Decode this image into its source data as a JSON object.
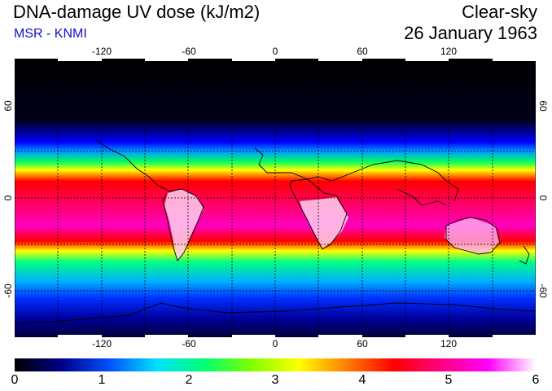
{
  "header": {
    "title": "DNA-damage UV dose (kJ/m2)",
    "subtitle": "MSR - KNMI",
    "condition": "Clear-sky",
    "date": "26 January 1963"
  },
  "map": {
    "lon_ticks": [
      "-120",
      "-60",
      "0",
      "60",
      "120"
    ],
    "lat_ticks": [
      "60",
      "0",
      "-60"
    ],
    "ocean_colors": [
      "#000000",
      "#0000ff",
      "#00ff60",
      "#ff0000",
      "#ff00c0",
      "#ffffff"
    ]
  },
  "colorbar": {
    "labels": [
      "0",
      "1",
      "2",
      "3",
      "4",
      "5",
      "6"
    ],
    "stops": [
      "#000000",
      "#00008a",
      "#0050ff",
      "#00e0ff",
      "#00ff70",
      "#80ff00",
      "#ffff00",
      "#ff8000",
      "#ff0000",
      "#ff0080",
      "#ff00ff",
      "#ffffff"
    ]
  }
}
